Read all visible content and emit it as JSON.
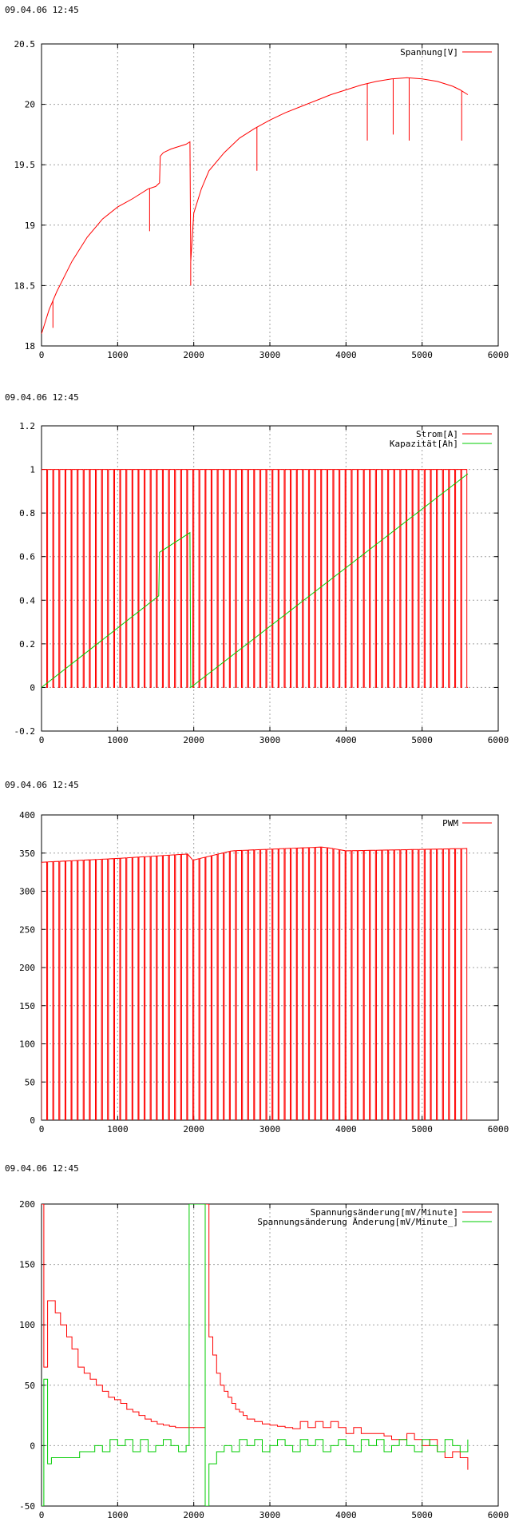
{
  "chart_data": [
    {
      "type": "line",
      "timestamp": "09.04.06 12:45",
      "title": "",
      "xlabel": "",
      "ylabel": "",
      "xlim": [
        0,
        6000
      ],
      "ylim": [
        18,
        20.5
      ],
      "xticks": [
        0,
        1000,
        2000,
        3000,
        4000,
        5000,
        6000
      ],
      "yticks": [
        18,
        18.5,
        19,
        19.5,
        20,
        20.5
      ],
      "ytick_labels": [
        "18",
        "18.5",
        "19",
        "19.5",
        "20",
        "20.5"
      ],
      "grid": true,
      "legend_position": "top-right",
      "series": [
        {
          "name": "Spannung[V]",
          "color": "#ff0000",
          "x": [
            0,
            100,
            200,
            400,
            600,
            800,
            1000,
            1200,
            1400,
            1500,
            1550,
            1560,
            1600,
            1700,
            1800,
            1900,
            1950,
            1960,
            2000,
            2100,
            2200,
            2400,
            2600,
            2800,
            3000,
            3200,
            3400,
            3600,
            3800,
            4000,
            4200,
            4400,
            4600,
            4800,
            5000,
            5200,
            5400,
            5500,
            5600
          ],
          "y": [
            18.1,
            18.3,
            18.45,
            18.7,
            18.9,
            19.05,
            19.15,
            19.22,
            19.3,
            19.32,
            19.35,
            19.57,
            19.6,
            19.63,
            19.65,
            19.67,
            19.69,
            18.7,
            19.1,
            19.3,
            19.45,
            19.6,
            19.72,
            19.8,
            19.87,
            19.93,
            19.98,
            20.03,
            20.08,
            20.12,
            20.16,
            20.19,
            20.21,
            20.22,
            20.21,
            20.19,
            20.15,
            20.12,
            20.08
          ],
          "dips": [
            [
              150,
              18.15
            ],
            [
              1420,
              18.95
            ],
            [
              1960,
              18.5
            ],
            [
              2830,
              19.45
            ],
            [
              4280,
              19.7
            ],
            [
              4620,
              19.75
            ],
            [
              4830,
              19.7
            ],
            [
              5520,
              19.7
            ]
          ]
        }
      ]
    },
    {
      "type": "line",
      "timestamp": "09.04.06 12:45",
      "title": "",
      "xlabel": "",
      "ylabel": "",
      "xlim": [
        0,
        6000
      ],
      "ylim": [
        -0.2,
        1.2
      ],
      "xticks": [
        0,
        1000,
        2000,
        3000,
        4000,
        5000,
        6000
      ],
      "yticks": [
        -0.2,
        0,
        0.2,
        0.4,
        0.6,
        0.8,
        1,
        1.2
      ],
      "ytick_labels": [
        "-0.2",
        "0",
        "0.2",
        "0.4",
        "0.6",
        "0.8",
        "1",
        "1.2"
      ],
      "grid": true,
      "legend_position": "top-right",
      "series": [
        {
          "name": "Strom[A]",
          "color": "#ff0000",
          "style": "pulses",
          "x_range": [
            0,
            5600
          ],
          "high": 1.0,
          "low": 0,
          "pulse_count": 70
        },
        {
          "name": "Kapazität[Ah]",
          "color": "#00cc00",
          "x": [
            0,
            1540,
            1550,
            1950,
            1960,
            5600
          ],
          "y": [
            0,
            0.42,
            0.62,
            0.71,
            0,
            0.98
          ]
        }
      ]
    },
    {
      "type": "line",
      "timestamp": "09.04.06 12:45",
      "title": "",
      "xlabel": "",
      "ylabel": "",
      "xlim": [
        0,
        6000
      ],
      "ylim": [
        0,
        400
      ],
      "xticks": [
        0,
        1000,
        2000,
        3000,
        4000,
        5000,
        6000
      ],
      "yticks": [
        0,
        50,
        100,
        150,
        200,
        250,
        300,
        350,
        400
      ],
      "ytick_labels": [
        "0",
        "50",
        "100",
        "150",
        "200",
        "250",
        "300",
        "350",
        "400"
      ],
      "grid": true,
      "legend_position": "top-right",
      "series": [
        {
          "name": "PWM",
          "color": "#ff0000",
          "style": "pulses",
          "x_range": [
            0,
            5600
          ],
          "high_x": [
            0,
            1000,
            1950,
            1960,
            2500,
            3700,
            4000,
            5600
          ],
          "high_y": [
            338,
            343,
            349,
            340,
            353,
            358,
            353,
            356
          ],
          "low": 0,
          "pulse_count": 70
        }
      ]
    },
    {
      "type": "line",
      "timestamp": "09.04.06 12:45",
      "title": "",
      "xlabel": "",
      "ylabel": "",
      "xlim": [
        0,
        6000
      ],
      "ylim": [
        -50,
        200
      ],
      "xticks": [
        0,
        1000,
        2000,
        3000,
        4000,
        5000,
        6000
      ],
      "yticks": [
        -50,
        0,
        50,
        100,
        150,
        200
      ],
      "ytick_labels": [
        "-50",
        "0",
        "50",
        "100",
        "150",
        "200"
      ],
      "grid": true,
      "legend_position": "top-right",
      "series": [
        {
          "name": "Spannungsänderung[mV/Minute]",
          "color": "#ff0000",
          "style": "step",
          "x": [
            0,
            30,
            80,
            180,
            250,
            330,
            400,
            480,
            560,
            640,
            720,
            800,
            880,
            960,
            1040,
            1120,
            1200,
            1280,
            1360,
            1440,
            1520,
            1600,
            1680,
            1760,
            1950,
            2150,
            2200,
            2250,
            2300,
            2350,
            2400,
            2450,
            2500,
            2550,
            2600,
            2650,
            2700,
            2800,
            2900,
            3000,
            3100,
            3200,
            3300,
            3400,
            3500,
            3600,
            3700,
            3800,
            3900,
            4000,
            4100,
            4200,
            4300,
            4400,
            4500,
            4600,
            4700,
            4800,
            4900,
            5000,
            5100,
            5200,
            5300,
            5400,
            5500,
            5600
          ],
          "y": [
            200,
            65,
            120,
            110,
            100,
            90,
            80,
            65,
            60,
            55,
            50,
            45,
            40,
            38,
            35,
            30,
            28,
            25,
            22,
            20,
            18,
            17,
            16,
            15,
            15,
            200,
            90,
            75,
            60,
            50,
            45,
            40,
            35,
            30,
            28,
            25,
            22,
            20,
            18,
            17,
            16,
            15,
            14,
            20,
            15,
            20,
            15,
            20,
            15,
            10,
            15,
            10,
            10,
            10,
            8,
            5,
            5,
            10,
            5,
            0,
            5,
            -5,
            -10,
            -5,
            -10,
            -20
          ]
        },
        {
          "name": "Spannungsänderung Änderung[mV/Minute_]",
          "color": "#00cc00",
          "style": "step",
          "x": [
            0,
            30,
            80,
            130,
            200,
            500,
            700,
            800,
            900,
            1000,
            1100,
            1200,
            1300,
            1400,
            1500,
            1600,
            1700,
            1800,
            1900,
            1940,
            1960,
            2150,
            2200,
            2300,
            2400,
            2500,
            2600,
            2700,
            2800,
            2900,
            3000,
            3100,
            3200,
            3300,
            3400,
            3500,
            3600,
            3700,
            3800,
            3900,
            4000,
            4100,
            4200,
            4300,
            4400,
            4500,
            4600,
            4700,
            4800,
            4900,
            5000,
            5100,
            5200,
            5300,
            5400,
            5500,
            5600
          ],
          "y": [
            -50,
            55,
            -15,
            -10,
            -10,
            -5,
            0,
            -5,
            5,
            0,
            5,
            -5,
            5,
            -5,
            0,
            5,
            0,
            -5,
            0,
            200,
            200,
            -50,
            -15,
            -5,
            0,
            -5,
            5,
            0,
            5,
            -5,
            0,
            5,
            0,
            -5,
            5,
            0,
            5,
            -5,
            0,
            5,
            0,
            -5,
            5,
            0,
            5,
            -5,
            0,
            5,
            0,
            -5,
            5,
            0,
            -5,
            5,
            0,
            -5,
            5
          ]
        }
      ]
    }
  ]
}
